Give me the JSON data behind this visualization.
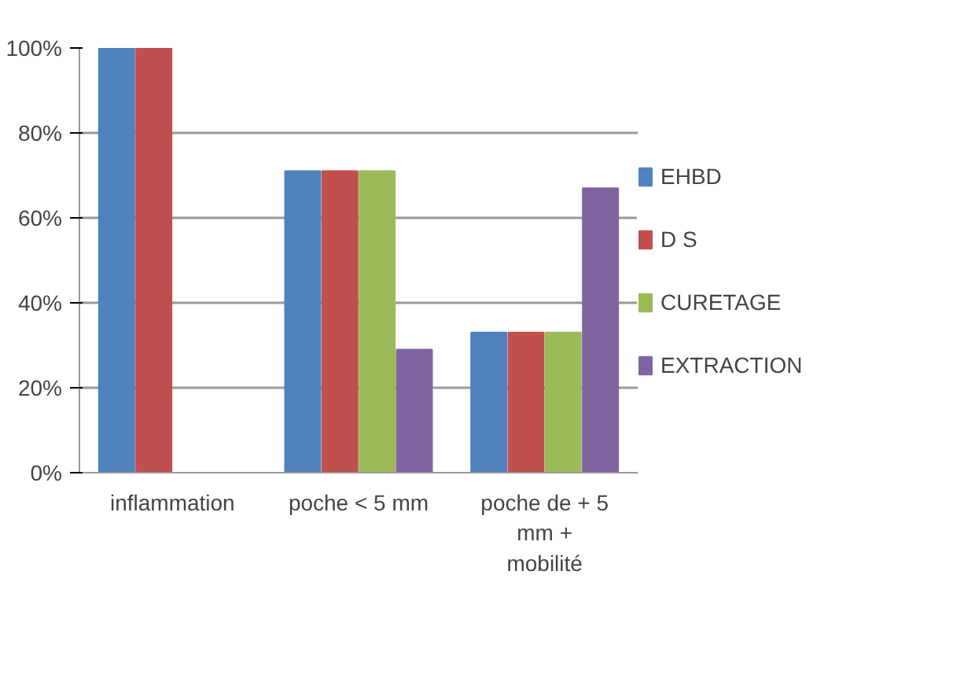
{
  "chart_data": {
    "type": "bar",
    "categories": [
      "inflammation",
      "poche < 5 mm",
      "poche de + 5 mm + mobilité"
    ],
    "series": [
      {
        "name": "EHBD",
        "color": "#4f81bd",
        "values": [
          100,
          71,
          33
        ]
      },
      {
        "name": "D S",
        "color": "#c0504d",
        "values": [
          100,
          71,
          33
        ]
      },
      {
        "name": "CURETAGE",
        "color": "#9bbb59",
        "values": [
          0,
          71,
          33
        ]
      },
      {
        "name": "EXTRACTION",
        "color": "#8064a2",
        "values": [
          0,
          29,
          67
        ]
      }
    ],
    "ylim": [
      0,
      100
    ],
    "yticks": [
      {
        "value": 0,
        "label": "0%"
      },
      {
        "value": 20,
        "label": "20%"
      },
      {
        "value": 40,
        "label": "40%"
      },
      {
        "value": 60,
        "label": "60%"
      },
      {
        "value": 80,
        "label": "80%"
      },
      {
        "value": 100,
        "label": "100%"
      }
    ],
    "grid": "y",
    "legend": "right"
  }
}
